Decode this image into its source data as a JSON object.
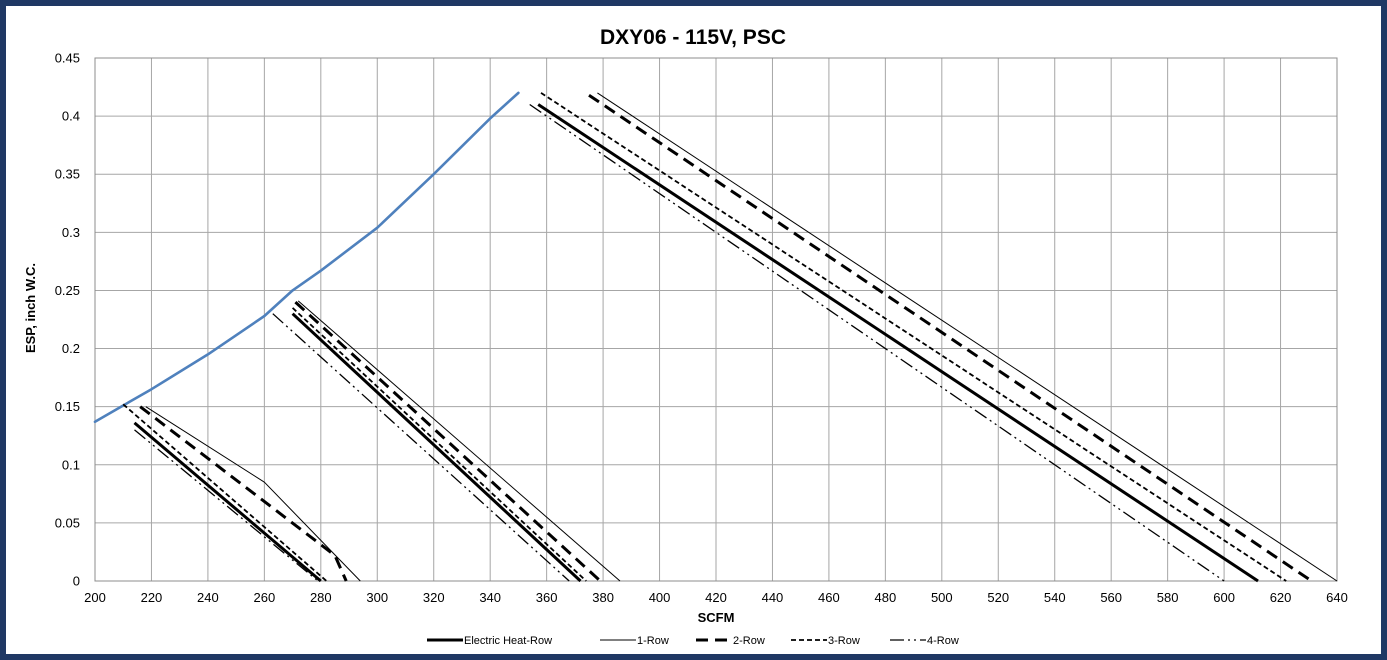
{
  "chart_data": {
    "type": "line",
    "title": "DXY06 - 115V, PSC",
    "xlabel": "SCFM",
    "ylabel": "ESP, inch W.C.",
    "xlim": [
      200,
      640
    ],
    "ylim": [
      0,
      0.45
    ],
    "x_ticks": [
      "200",
      "220",
      "240",
      "260",
      "280",
      "300",
      "320",
      "340",
      "360",
      "380",
      "400",
      "420",
      "440",
      "460",
      "480",
      "500",
      "520",
      "540",
      "560",
      "580",
      "600",
      "620",
      "640"
    ],
    "y_ticks": [
      "0",
      "0.05",
      "0.1",
      "0.15",
      "0.2",
      "0.25",
      "0.3",
      "0.35",
      "0.4",
      "0.45"
    ],
    "grid": true,
    "legend_position": "bottom",
    "colors": {
      "frame": "#1F3864",
      "limit_curve": "#4F81BD",
      "series": "#000000"
    },
    "limit_curve": {
      "points": [
        [
          200,
          0.137
        ],
        [
          210,
          0.151
        ],
        [
          220,
          0.165
        ],
        [
          240,
          0.195
        ],
        [
          260,
          0.228
        ],
        [
          270,
          0.25
        ],
        [
          280,
          0.267
        ],
        [
          300,
          0.304
        ],
        [
          320,
          0.35
        ],
        [
          340,
          0.398
        ],
        [
          350,
          0.42
        ]
      ]
    },
    "series": [
      {
        "name": "Electric Heat-Row",
        "style": "solid-thick",
        "segments": [
          [
            [
              214,
              0.136
            ],
            [
              280,
              0.0
            ]
          ],
          [
            [
              270,
              0.23
            ],
            [
              372,
              0.0
            ]
          ],
          [
            [
              357,
              0.41
            ],
            [
              612,
              0.0
            ]
          ]
        ]
      },
      {
        "name": "1-Row",
        "style": "solid-thin",
        "segments": [
          [
            [
              218,
              0.15
            ],
            [
              260,
              0.085
            ],
            [
              294,
              0.0
            ]
          ],
          [
            [
              272,
              0.241
            ],
            [
              386,
              0.0
            ]
          ],
          [
            [
              378,
              0.42
            ],
            [
              640,
              0.0
            ]
          ]
        ]
      },
      {
        "name": "2-Row",
        "style": "long-dash",
        "segments": [
          [
            [
              216,
              0.15
            ],
            [
              285,
              0.022
            ],
            [
              289,
              0.0
            ]
          ],
          [
            [
              271,
              0.24
            ],
            [
              379,
              0.0
            ]
          ],
          [
            [
              375,
              0.418
            ],
            [
              631,
              0.0
            ]
          ]
        ]
      },
      {
        "name": "3-Row",
        "style": "short-dash",
        "segments": [
          [
            [
              210,
              0.152
            ],
            [
              282,
              0.0
            ]
          ],
          [
            [
              270,
              0.235
            ],
            [
              374,
              0.0
            ]
          ],
          [
            [
              358,
              0.42
            ],
            [
              622,
              0.0
            ]
          ]
        ]
      },
      {
        "name": "4-Row",
        "style": "dash-dot",
        "segments": [
          [
            [
              214,
              0.13
            ],
            [
              279,
              0.0
            ]
          ],
          [
            [
              263,
              0.23
            ],
            [
              368,
              0.0
            ]
          ],
          [
            [
              354,
              0.41
            ],
            [
              600,
              0.0
            ]
          ]
        ]
      }
    ]
  }
}
